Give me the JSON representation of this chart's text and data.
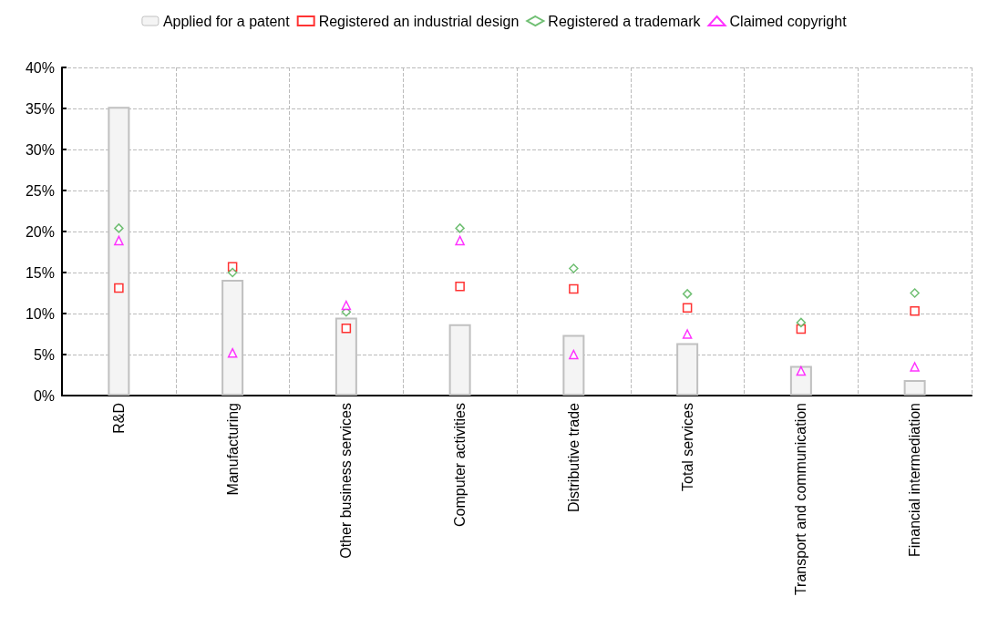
{
  "chart_data": {
    "type": "bar",
    "categories": [
      "R&D",
      "Manufacturing",
      "Other business services",
      "Computer activities",
      "Distributive trade",
      "Total services",
      "Transport and communication",
      "Financial intermediation"
    ],
    "series": [
      {
        "name": "Applied for a patent",
        "color": "#f4f4f4",
        "values": [
          35.2,
          14.1,
          9.5,
          8.7,
          7.4,
          6.4,
          3.6,
          1.9
        ]
      },
      {
        "name": "Registered an industrial design",
        "type": "scatter",
        "marker": "square",
        "color": "#ff0000",
        "values": [
          13.1,
          15.7,
          8.2,
          13.3,
          13.0,
          10.7,
          8.1,
          10.3
        ]
      },
      {
        "name": "Registered a trademark",
        "type": "scatter",
        "marker": "diamond",
        "color": "#4caf50",
        "values": [
          20.4,
          15.0,
          10.2,
          20.4,
          15.5,
          12.4,
          8.9,
          12.5
        ]
      },
      {
        "name": "Claimed copyright",
        "type": "scatter",
        "marker": "triangle",
        "color": "#ff00ff",
        "values": [
          18.9,
          5.2,
          11.0,
          18.9,
          5.0,
          7.5,
          3.0,
          3.5
        ]
      }
    ],
    "ylim": [
      0,
      40
    ],
    "yticks": [
      {
        "value": 0,
        "label": "0%"
      },
      {
        "value": 5,
        "label": "5%"
      },
      {
        "value": 10,
        "label": "10%"
      },
      {
        "value": 15,
        "label": "15%"
      },
      {
        "value": 20,
        "label": "20%"
      },
      {
        "value": 25,
        "label": "25%"
      },
      {
        "value": 30,
        "label": "30%"
      },
      {
        "value": 35,
        "label": "35%"
      },
      {
        "value": 40,
        "label": "40%"
      }
    ],
    "grid": true,
    "legend": "top"
  }
}
